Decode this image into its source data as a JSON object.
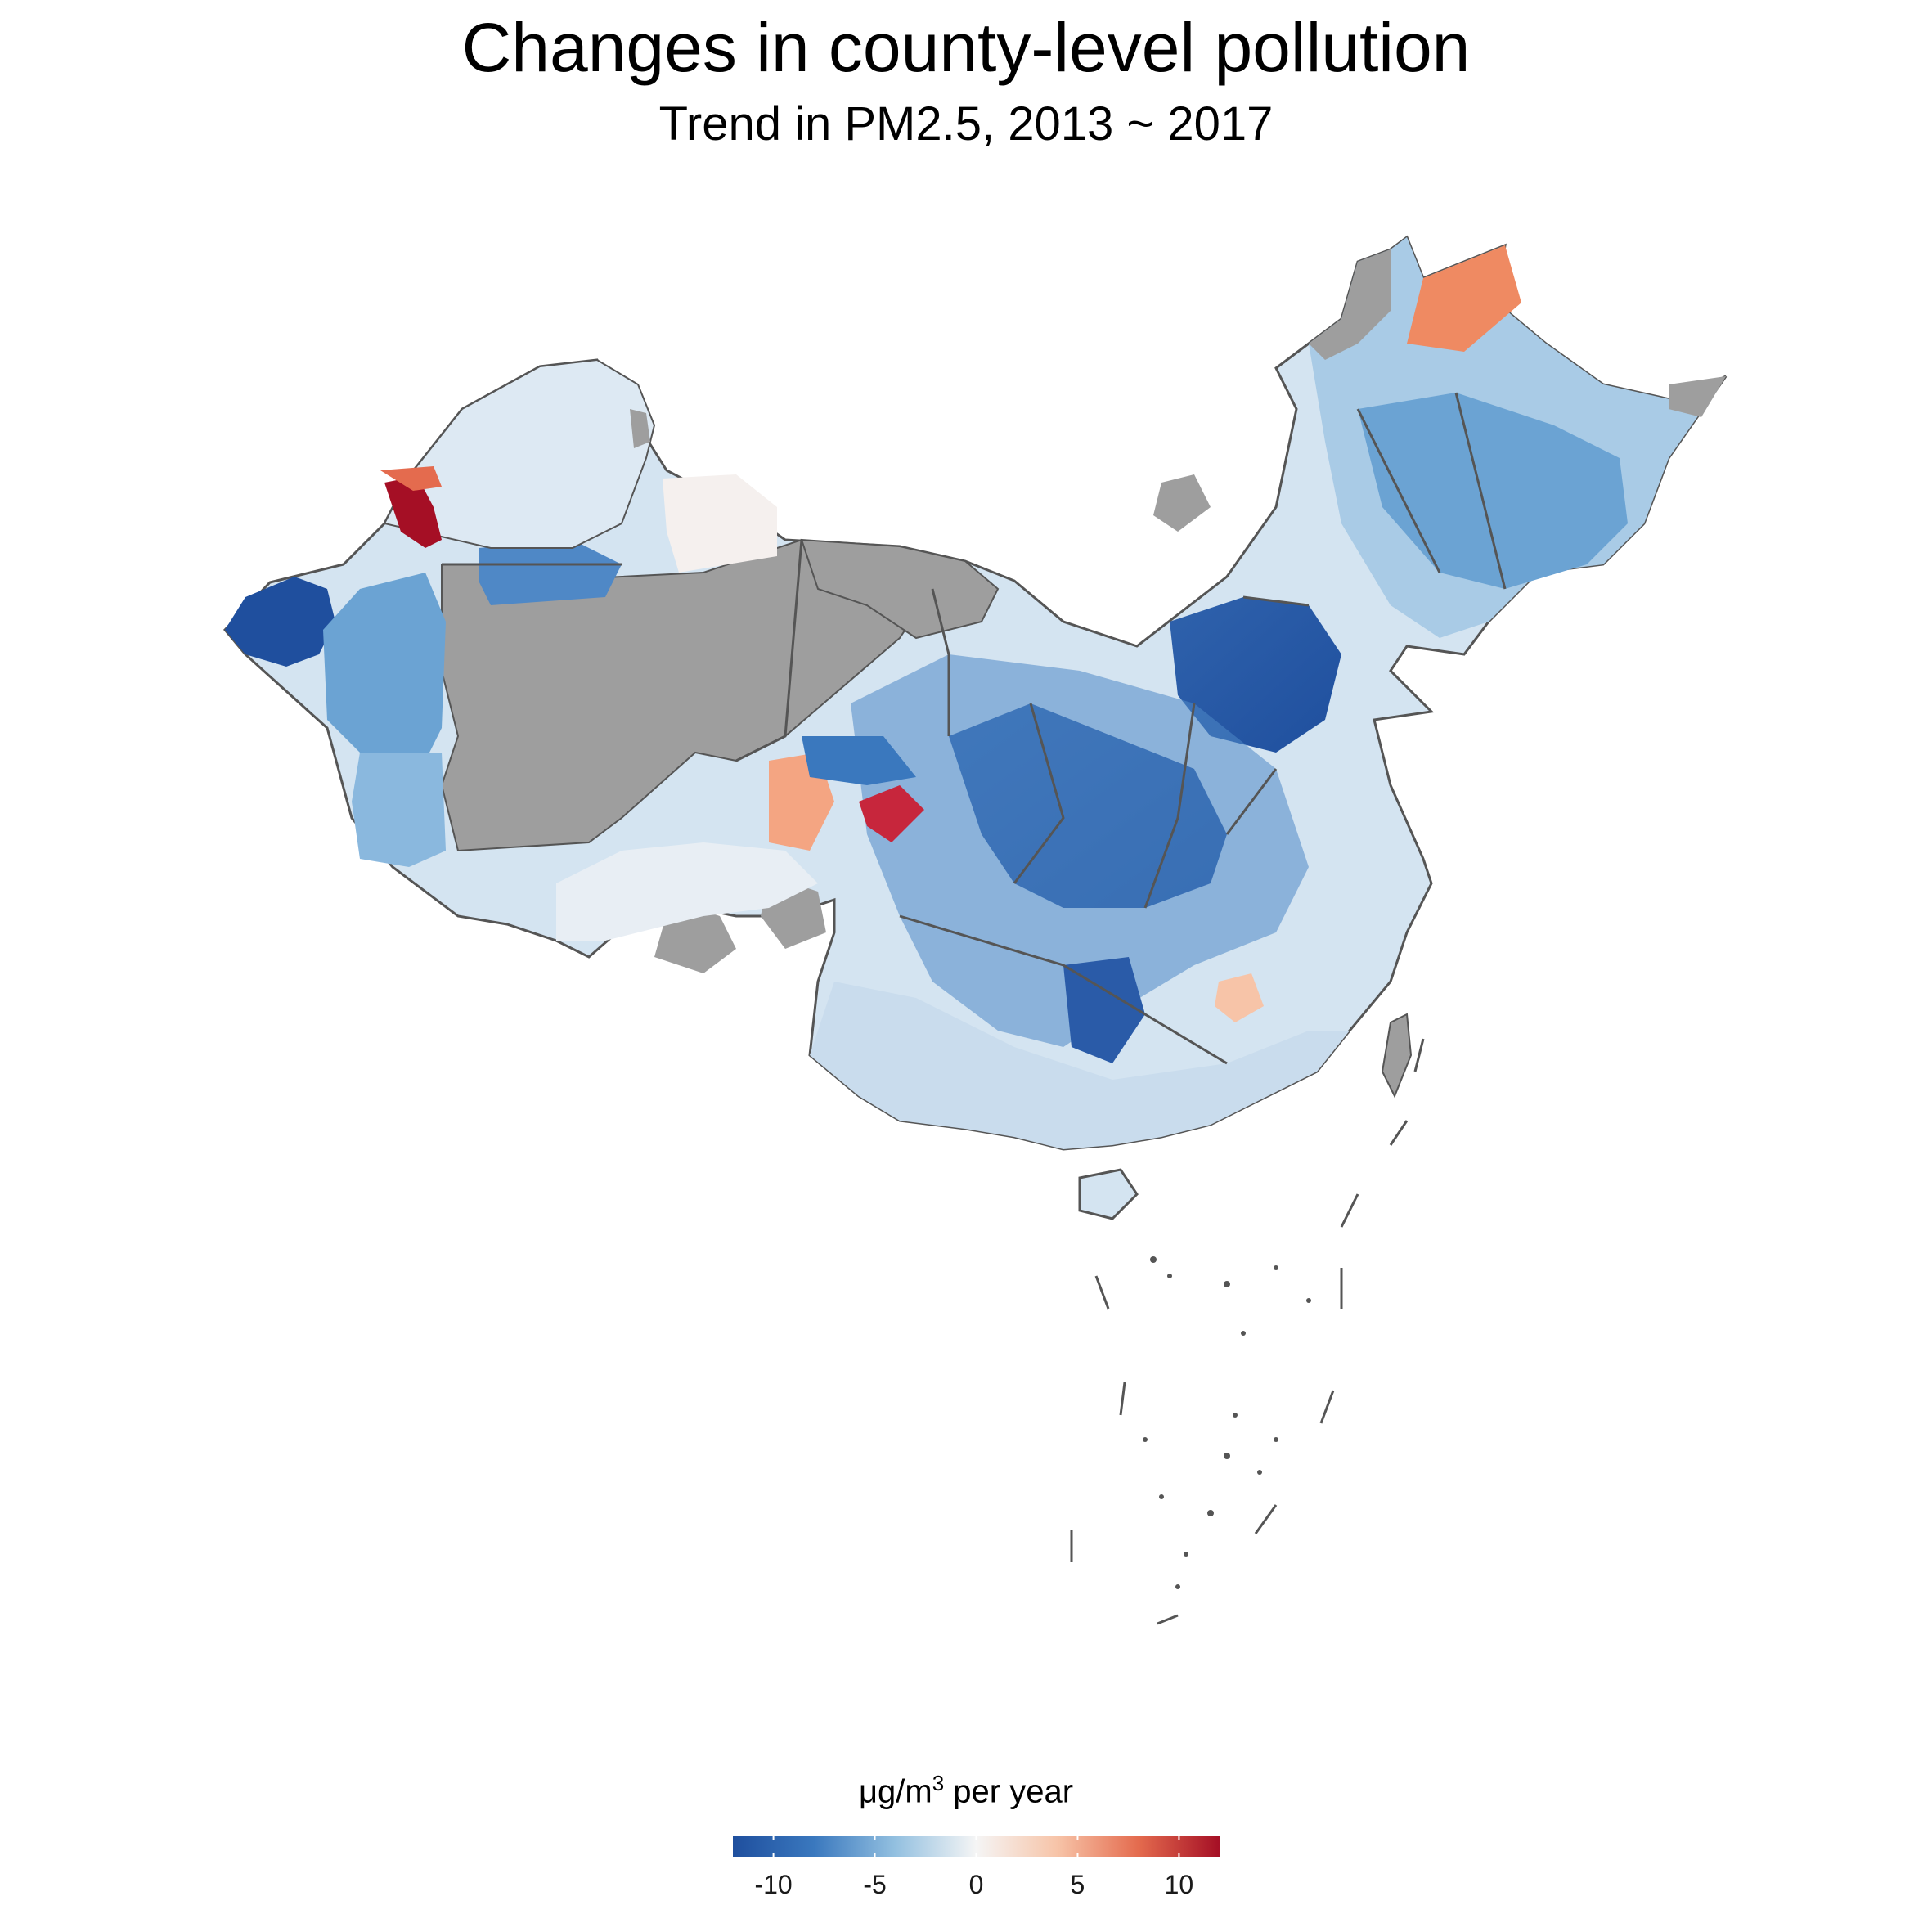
{
  "title": "Changes in county-level pollution",
  "subtitle": "Trend in PM2.5, 2013 ~ 2017",
  "legend": {
    "title_prefix": "μg/m",
    "title_sup": "3",
    "title_suffix": " per year",
    "min": -12,
    "max": 12,
    "ticks": [
      -10,
      -5,
      0,
      5,
      10
    ],
    "tick_labels": [
      "-10",
      "-5",
      "0",
      "5",
      "10"
    ],
    "stops": [
      {
        "value": -12,
        "color": "#1f4f9e"
      },
      {
        "value": -8,
        "color": "#3a78be"
      },
      {
        "value": -4,
        "color": "#93c0e0"
      },
      {
        "value": 0,
        "color": "#f5f5f5"
      },
      {
        "value": 4,
        "color": "#f7c4a8"
      },
      {
        "value": 8,
        "color": "#e46b4e"
      },
      {
        "value": 12,
        "color": "#a50f25"
      }
    ]
  },
  "colors": {
    "no_data": "#9e9e9e",
    "border": "#555555"
  }
}
